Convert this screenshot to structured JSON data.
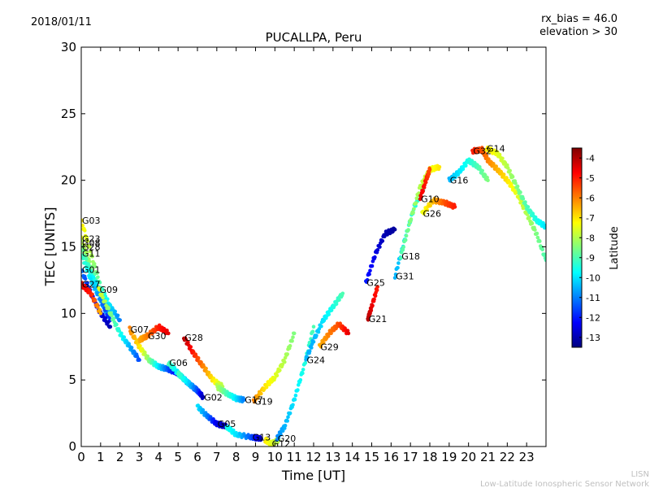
{
  "header": {
    "date": "2018/01/11",
    "rx_bias": "rx_bias = 46.0",
    "elevation": "elevation > 30"
  },
  "footer": {
    "short": "LISN",
    "long": "Low-Latitude Ionospheric Sensor Network"
  },
  "chart_data": {
    "type": "scatter",
    "title": "PUCALLPA, Peru",
    "xlabel": "Time [UT]",
    "ylabel": "TEC [UNITS]",
    "xlim": [
      0,
      24
    ],
    "ylim": [
      0,
      30
    ],
    "x_ticks": [
      "0",
      "1",
      "2",
      "3",
      "4",
      "5",
      "6",
      "7",
      "8",
      "9",
      "10",
      "11",
      "12",
      "13",
      "14",
      "15",
      "16",
      "17",
      "18",
      "19",
      "20",
      "21",
      "22",
      "23"
    ],
    "y_ticks": [
      "0",
      "5",
      "10",
      "15",
      "20",
      "25",
      "30"
    ],
    "grid": false,
    "colorbar": {
      "label": "Latitude",
      "range": [
        -13.5,
        -3.5
      ],
      "ticks": [
        "-4",
        "-5",
        "-6",
        "-7",
        "-8",
        "-9",
        "-10",
        "-11",
        "-12",
        "-13"
      ],
      "colors": [
        "#00007f",
        "#0000ff",
        "#007fff",
        "#00ffff",
        "#7fff7f",
        "#ffff00",
        "#ff7f00",
        "#ff0000",
        "#7f0000"
      ]
    },
    "series": [
      {
        "name": "G03",
        "label_at": [
          0.0,
          17.0
        ],
        "x": [
          0.0,
          0.5,
          1.0,
          1.5,
          2.0
        ],
        "y": [
          17.0,
          14.5,
          12.0,
          10.5,
          9.5
        ],
        "lat": [
          -7.0,
          -8.0,
          -9.0,
          -10.0,
          -11.0
        ]
      },
      {
        "name": "G23",
        "label_at": [
          0.0,
          15.6
        ],
        "x": [
          0.0,
          0.5,
          1.0,
          1.5
        ],
        "y": [
          15.6,
          13.5,
          11.5,
          10.0
        ],
        "lat": [
          -7.5,
          -8.5,
          -9.5,
          -10.5
        ]
      },
      {
        "name": "G08",
        "label_at": [
          0.0,
          15.3
        ],
        "x": [
          0.0,
          0.5,
          1.0,
          1.5
        ],
        "y": [
          15.3,
          13.0,
          11.0,
          9.5
        ],
        "lat": [
          -8.0,
          -9.0,
          -10.0,
          -11.0
        ]
      },
      {
        "name": "G28",
        "label_at": [
          0.0,
          15.0
        ],
        "x": [
          0.0,
          0.5,
          1.0
        ],
        "y": [
          15.0,
          13.0,
          11.5
        ],
        "lat": [
          -8.5,
          -9.5,
          -10.5
        ]
      },
      {
        "name": "G11",
        "label_at": [
          0.0,
          14.5
        ],
        "x": [
          0.0,
          0.5,
          1.0,
          1.5
        ],
        "y": [
          14.5,
          12.5,
          11.0,
          9.5
        ],
        "lat": [
          -9.0,
          -10.0,
          -11.0,
          -12.0
        ]
      },
      {
        "name": "G01",
        "label_at": [
          0.0,
          13.3
        ],
        "x": [
          0.0,
          0.5,
          1.0,
          1.5
        ],
        "y": [
          13.3,
          11.5,
          10.0,
          9.0
        ],
        "lat": [
          -11.0,
          -12.0,
          -12.5,
          -13.0
        ]
      },
      {
        "name": "G27",
        "label_at": [
          0.0,
          12.2
        ],
        "x": [
          0.0,
          0.5,
          1.0
        ],
        "y": [
          12.2,
          11.5,
          10.0
        ],
        "lat": [
          -4.5,
          -5.0,
          -6.5
        ]
      },
      {
        "name": "G09",
        "label_at": [
          0.9,
          11.8
        ],
        "x": [
          0.9,
          1.5,
          2.0,
          2.5,
          3.0
        ],
        "y": [
          11.8,
          10.0,
          8.5,
          7.5,
          6.5
        ],
        "lat": [
          -7.5,
          -8.5,
          -9.5,
          -10.5,
          -11.5
        ]
      },
      {
        "name": "G07",
        "label_at": [
          2.5,
          8.8
        ],
        "x": [
          2.5,
          3.0,
          3.5,
          4.0,
          4.5,
          5.0
        ],
        "y": [
          8.8,
          7.5,
          6.5,
          6.0,
          5.8,
          5.5
        ],
        "lat": [
          -6.0,
          -7.0,
          -8.5,
          -10.0,
          -11.5,
          -12.5
        ]
      },
      {
        "name": "G30",
        "label_at": [
          3.4,
          8.3
        ],
        "x": [
          3.0,
          3.4,
          4.0,
          4.5
        ],
        "y": [
          8.0,
          8.3,
          9.0,
          8.5
        ],
        "lat": [
          -6.5,
          -6.0,
          -5.0,
          -4.5
        ]
      },
      {
        "name": "G28",
        "label_at": [
          5.3,
          8.2
        ],
        "x": [
          5.3,
          5.8,
          6.3,
          6.8,
          7.3
        ],
        "y": [
          8.2,
          7.0,
          6.0,
          5.0,
          4.5
        ],
        "lat": [
          -4.0,
          -5.0,
          -6.0,
          -7.0,
          -8.0
        ]
      },
      {
        "name": "G06",
        "label_at": [
          4.5,
          6.3
        ],
        "x": [
          4.5,
          5.0,
          5.5,
          6.0
        ],
        "y": [
          6.3,
          5.5,
          4.8,
          4.2
        ],
        "lat": [
          -9.0,
          -10.0,
          -11.0,
          -12.0
        ]
      },
      {
        "name": "G02",
        "label_at": [
          6.3,
          3.7
        ],
        "x": [
          5.0,
          5.5,
          6.0,
          6.3
        ],
        "y": [
          5.5,
          4.8,
          4.2,
          3.7
        ],
        "lat": [
          -9.0,
          -10.0,
          -11.5,
          -13.0
        ]
      },
      {
        "name": "G05",
        "label_at": [
          7.0,
          1.7
        ],
        "x": [
          6.0,
          6.5,
          7.0,
          7.5
        ],
        "y": [
          3.0,
          2.3,
          1.7,
          1.5
        ],
        "lat": [
          -10.0,
          -11.0,
          -12.5,
          -13.0
        ]
      },
      {
        "name": "G17",
        "label_at": [
          8.4,
          3.5
        ],
        "x": [
          7.0,
          7.5,
          8.0,
          8.4
        ],
        "y": [
          4.5,
          4.0,
          3.6,
          3.5
        ],
        "lat": [
          -8.0,
          -9.0,
          -10.0,
          -11.0
        ]
      },
      {
        "name": "G19",
        "label_at": [
          8.9,
          3.4
        ],
        "x": [
          8.9,
          9.5,
          10.0,
          10.5,
          11.0
        ],
        "y": [
          3.4,
          4.5,
          5.2,
          6.5,
          8.5
        ],
        "lat": [
          -6.0,
          -7.0,
          -7.5,
          -8.0,
          -8.5
        ]
      },
      {
        "name": "G13",
        "label_at": [
          8.8,
          0.7
        ],
        "x": [
          7.5,
          8.0,
          8.8,
          9.3
        ],
        "y": [
          1.5,
          0.9,
          0.7,
          0.6
        ],
        "lat": [
          -9.5,
          -10.0,
          -11.5,
          -13.0
        ]
      },
      {
        "name": "G12",
        "label_at": [
          9.8,
          0.2
        ],
        "x": [
          9.5,
          9.8,
          10.2
        ],
        "y": [
          0.5,
          0.2,
          0.5
        ],
        "lat": [
          -7.0,
          -7.5,
          -8.0
        ]
      },
      {
        "name": "G20",
        "label_at": [
          10.1,
          0.6
        ],
        "x": [
          10.1,
          10.5,
          11.0,
          11.5,
          12.0
        ],
        "y": [
          0.6,
          1.5,
          3.5,
          6.0,
          9.0
        ],
        "lat": [
          -11.0,
          -10.5,
          -10.0,
          -9.5,
          -9.0
        ]
      },
      {
        "name": "G24",
        "label_at": [
          11.6,
          6.5
        ],
        "x": [
          11.6,
          12.0,
          12.5,
          13.0,
          13.5
        ],
        "y": [
          6.5,
          8.0,
          9.5,
          10.5,
          11.5
        ],
        "lat": [
          -10.5,
          -10.5,
          -10.0,
          -9.5,
          -9.0
        ]
      },
      {
        "name": "G29",
        "label_at": [
          12.3,
          7.5
        ],
        "x": [
          12.3,
          12.8,
          13.3,
          13.8
        ],
        "y": [
          7.5,
          8.5,
          9.2,
          8.5
        ],
        "lat": [
          -6.5,
          -6.0,
          -5.5,
          -4.5
        ]
      },
      {
        "name": "G25",
        "label_at": [
          14.7,
          12.3
        ],
        "x": [
          14.7,
          15.2,
          15.7,
          16.2
        ],
        "y": [
          12.3,
          14.5,
          16.0,
          16.3
        ],
        "lat": [
          -12.0,
          -12.5,
          -13.0,
          -13.2
        ]
      },
      {
        "name": "G21",
        "label_at": [
          14.8,
          9.6
        ],
        "x": [
          14.8,
          15.0,
          15.3
        ],
        "y": [
          9.6,
          10.5,
          12.0
        ],
        "lat": [
          -4.0,
          -4.5,
          -5.0
        ]
      },
      {
        "name": "G31",
        "label_at": [
          16.2,
          12.8
        ],
        "x": [
          16.2,
          16.7,
          17.2,
          17.7
        ],
        "y": [
          12.8,
          15.5,
          18.0,
          19.5
        ],
        "lat": [
          -10.5,
          -10.0,
          -9.5,
          -9.0
        ]
      },
      {
        "name": "G18",
        "label_at": [
          16.5,
          14.3
        ],
        "x": [
          16.5,
          17.0,
          17.5,
          18.0,
          18.5
        ],
        "y": [
          14.3,
          17.0,
          19.5,
          20.8,
          21.0
        ],
        "lat": [
          -9.0,
          -8.5,
          -8.0,
          -7.5,
          -7.0
        ]
      },
      {
        "name": "G10",
        "label_at": [
          17.5,
          18.6
        ],
        "x": [
          17.5,
          17.8,
          18.0
        ],
        "y": [
          18.6,
          20.0,
          20.8
        ],
        "lat": [
          -4.5,
          -5.0,
          -5.5
        ]
      },
      {
        "name": "G26",
        "label_at": [
          17.6,
          17.5
        ],
        "x": [
          17.6,
          18.2,
          18.8,
          19.3
        ],
        "y": [
          17.5,
          18.5,
          18.3,
          18.0
        ],
        "lat": [
          -7.5,
          -6.5,
          -5.5,
          -5.0
        ]
      },
      {
        "name": "G16",
        "label_at": [
          19.0,
          20.0
        ],
        "x": [
          19.0,
          19.5,
          20.0,
          20.5,
          21.0
        ],
        "y": [
          20.0,
          20.6,
          21.5,
          21.0,
          20.0
        ],
        "lat": [
          -10.5,
          -10.0,
          -9.5,
          -9.0,
          -8.5
        ]
      },
      {
        "name": "G32",
        "label_at": [
          20.2,
          22.2
        ],
        "x": [
          20.2,
          20.7,
          21.0,
          21.5,
          22.0,
          22.5,
          23.0,
          23.5,
          24.0
        ],
        "y": [
          22.2,
          22.3,
          21.5,
          20.8,
          20.0,
          19.0,
          17.5,
          16.0,
          14.0
        ],
        "lat": [
          -5.0,
          -5.5,
          -6.0,
          -6.5,
          -7.0,
          -7.5,
          -8.0,
          -8.5,
          -9.0
        ]
      },
      {
        "name": "G14",
        "label_at": [
          20.9,
          22.4
        ],
        "x": [
          20.9,
          21.5,
          22.0,
          22.5,
          23.0,
          23.5,
          24.0
        ],
        "y": [
          22.4,
          22.0,
          21.0,
          19.5,
          18.0,
          17.0,
          16.5
        ],
        "lat": [
          -7.0,
          -7.5,
          -8.0,
          -8.5,
          -9.0,
          -9.5,
          -10.0
        ]
      }
    ]
  }
}
